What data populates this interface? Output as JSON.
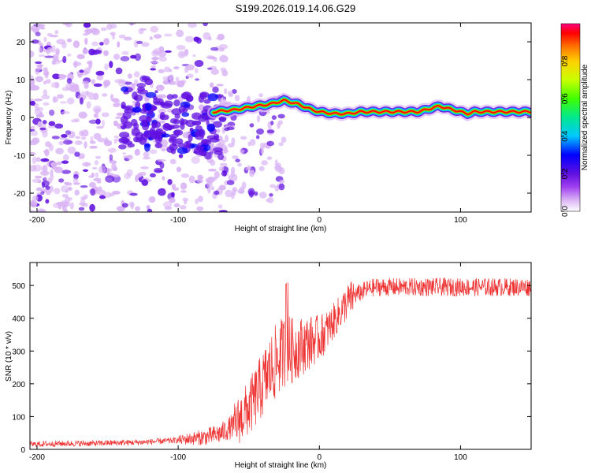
{
  "title": "S199.2026.019.14.06.G29",
  "chart_data": [
    {
      "type": "heatmap",
      "title": "S199.2026.019.14.06.G29",
      "xlabel": "Height of straight line (km)",
      "ylabel": "Frequency (Hz)",
      "xlim": [
        -205,
        150
      ],
      "ylim": [
        -25,
        25
      ],
      "xticks": [
        -200,
        -100,
        0,
        100
      ],
      "yticks": [
        -20,
        -10,
        0,
        10,
        20
      ],
      "colorbar": {
        "label": "Normalized spectral amplitude",
        "range": [
          0.0,
          1.0
        ],
        "ticks": [
          "0.0",
          "0.2",
          "0.4",
          "0.6",
          "0.8"
        ],
        "colors": [
          "#ffffff",
          "#d9b3f5",
          "#a040f0",
          "#6010e0",
          "#0000ff",
          "#00c8ff",
          "#00e890",
          "#40ff00",
          "#c8ff00",
          "#ffd000",
          "#ff7000",
          "#ff0000",
          "#ff0080"
        ]
      },
      "ridge": {
        "description": "dominant frequency vs height",
        "x": [
          -75,
          -60,
          -45,
          -35,
          -25,
          -15,
          -5,
          0,
          10,
          20,
          30,
          40,
          50,
          60,
          70,
          80,
          85,
          90,
          95,
          100,
          105,
          110,
          120,
          130,
          140,
          150
        ],
        "y": [
          1.5,
          2.0,
          3.0,
          3.5,
          4.5,
          3.5,
          2.0,
          1.5,
          1.0,
          1.0,
          1.5,
          1.5,
          1.5,
          1.5,
          1.5,
          2.5,
          3.0,
          2.5,
          2.0,
          1.5,
          1.0,
          1.5,
          1.5,
          1.5,
          1.5,
          1.5
        ]
      }
    },
    {
      "type": "line",
      "title": "",
      "xlabel": "Height of straight line (km)",
      "ylabel": "SNR (10 * v/v)",
      "xlim": [
        -205,
        150
      ],
      "ylim": [
        0,
        570
      ],
      "xticks": [
        -200,
        -100,
        0,
        100
      ],
      "yticks": [
        0,
        100,
        200,
        300,
        400,
        500
      ],
      "color": "#ee3333",
      "series": [
        {
          "name": "SNR",
          "x": [
            -205,
            -190,
            -175,
            -160,
            -145,
            -130,
            -115,
            -100,
            -90,
            -80,
            -70,
            -60,
            -55,
            -50,
            -45,
            -40,
            -35,
            -30,
            -25,
            -22,
            -20,
            -15,
            -10,
            -5,
            0,
            5,
            10,
            15,
            20,
            25,
            30,
            35,
            40,
            50,
            60,
            80,
            100,
            120,
            140,
            150
          ],
          "y": [
            15,
            17,
            18,
            18,
            20,
            21,
            24,
            28,
            33,
            38,
            48,
            75,
            100,
            125,
            160,
            200,
            240,
            270,
            300,
            310,
            300,
            310,
            320,
            330,
            340,
            360,
            390,
            420,
            450,
            470,
            480,
            490,
            495,
            495,
            495,
            495,
            495,
            495,
            495,
            495
          ]
        }
      ]
    }
  ]
}
